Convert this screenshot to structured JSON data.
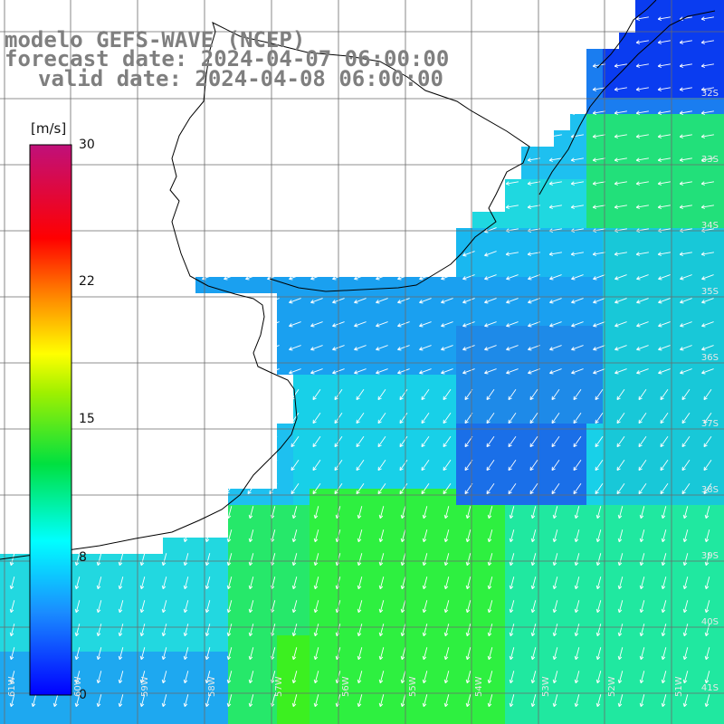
{
  "header": {
    "model": "modelo GEFS-WAVE (NCEP)",
    "forecast": "forecast date: 2024-04-07 06:00:00",
    "valid": "valid date: 2024-04-08 06:00:00"
  },
  "colorbar": {
    "unit": "[m/s]",
    "ticks": [
      "30",
      "22",
      "15",
      "8",
      "0"
    ]
  },
  "axes": {
    "lat_labels": [
      "32S",
      "33S",
      "34S",
      "35S",
      "36S",
      "37S",
      "38S",
      "39S",
      "40S",
      "41S"
    ],
    "lon_labels": [
      "61W",
      "60W",
      "59W",
      "58W",
      "57W",
      "56W",
      "55W",
      "54W",
      "53W",
      "52W",
      "51W"
    ]
  },
  "colors": {
    "land": "#ffffff",
    "coast": "#000000",
    "grid": "#6a6a6a",
    "arrow": "#ffffff",
    "title": "#7f7f7f"
  }
}
